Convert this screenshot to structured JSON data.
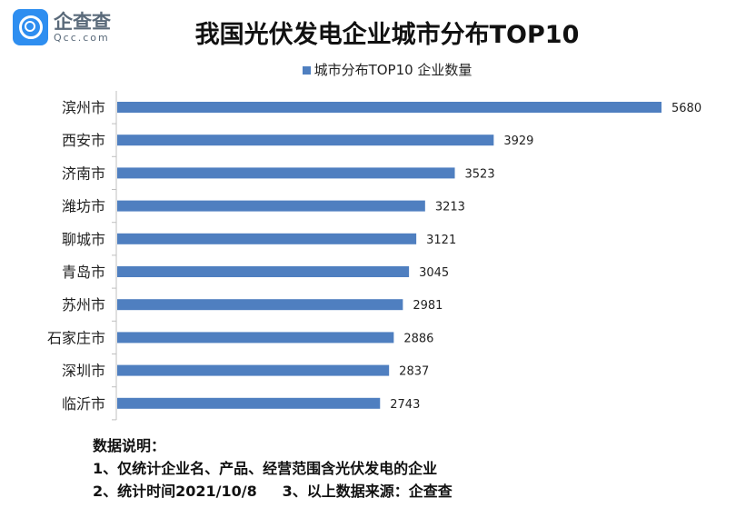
{
  "logo": {
    "name_cn": "企查查",
    "name_en": "Qcc.com"
  },
  "chart_data": {
    "type": "bar",
    "orientation": "horizontal",
    "title": "我国光伏发电企业城市分布TOP10",
    "categories": [
      "滨州市",
      "西安市",
      "济南市",
      "潍坊市",
      "聊城市",
      "青岛市",
      "苏州市",
      "石家庄市",
      "深圳市",
      "临沂市"
    ],
    "series": [
      {
        "name": "城市分布TOP10 企业数量",
        "values": [
          5680,
          3929,
          3523,
          3213,
          3121,
          3045,
          2981,
          2886,
          2837,
          2743
        ],
        "color": "#4f7fc0"
      }
    ],
    "xlim": [
      0,
      5680
    ],
    "grid": false,
    "legend_position": "top",
    "data_labels": true
  },
  "notes": {
    "heading": "数据说明：",
    "line1": "1、仅统计企业名、产品、经营范围含光伏发电的企业",
    "line2": "2、统计时间2021/10/8     3、以上数据来源：企查查"
  }
}
